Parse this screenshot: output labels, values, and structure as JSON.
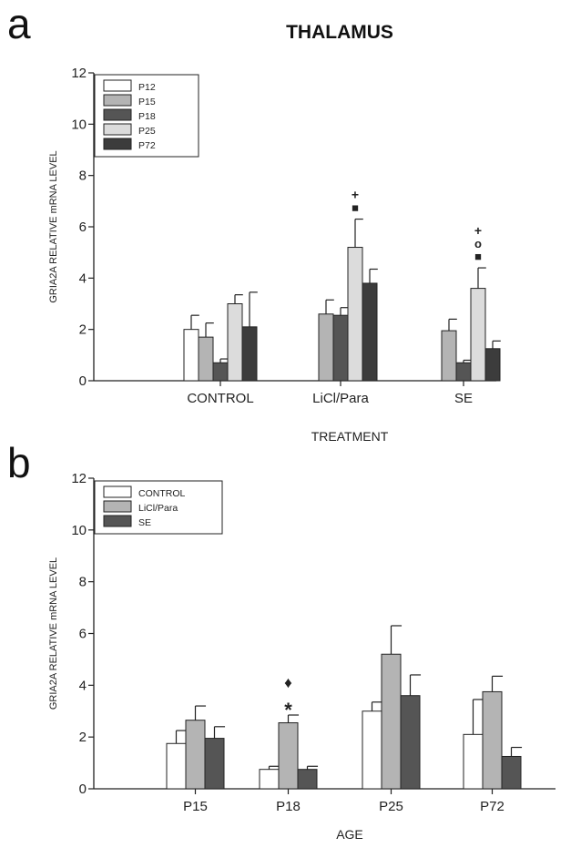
{
  "panel_a": {
    "letter": "a",
    "title": "THALAMUS"
  },
  "panel_b": {
    "letter": "b"
  },
  "colors": {
    "P12": "#ffffff",
    "P15": "#b4b4b4",
    "P18": "#555555",
    "P25": "#dcdcdc",
    "P72": "#3c3c3c",
    "CONTROL": "#ffffff",
    "LiCl/Para": "#b4b4b4",
    "SE": "#555555"
  },
  "chart_data": [
    {
      "type": "bar",
      "title": "THALAMUS",
      "xlabel": "TREATMENT",
      "ylabel": "GRIA2A RELATIVE mRNA LEVEL",
      "ylim": [
        0,
        12
      ],
      "yticks": [
        0,
        2,
        4,
        6,
        8,
        10,
        12
      ],
      "categories": [
        "CONTROL",
        "LiCl/Para",
        "SE"
      ],
      "legend": "top-left",
      "series": [
        {
          "name": "P12",
          "values": [
            2.0,
            null,
            null
          ],
          "errors": [
            0.55,
            null,
            null
          ]
        },
        {
          "name": "P15",
          "values": [
            1.7,
            2.6,
            1.95
          ],
          "errors": [
            0.55,
            0.55,
            0.45
          ]
        },
        {
          "name": "P18",
          "values": [
            0.7,
            2.55,
            0.7
          ],
          "errors": [
            0.15,
            0.3,
            0.1
          ]
        },
        {
          "name": "P25",
          "values": [
            3.0,
            5.2,
            3.6
          ],
          "errors": [
            0.35,
            1.1,
            0.8
          ]
        },
        {
          "name": "P72",
          "values": [
            2.1,
            3.8,
            1.25
          ],
          "errors": [
            1.35,
            0.55,
            0.3
          ]
        }
      ],
      "annotations": [
        {
          "category": "LiCl/Para",
          "series": "P25",
          "symbols": [
            "■",
            "+"
          ]
        },
        {
          "category": "SE",
          "series": "P25",
          "symbols": [
            "■",
            "o",
            "+"
          ]
        }
      ]
    },
    {
      "type": "bar",
      "xlabel": "AGE",
      "ylabel": "GRIA2A RELATIVE mRNA LEVEL",
      "ylim": [
        0,
        12
      ],
      "yticks": [
        0,
        2,
        4,
        6,
        8,
        10,
        12
      ],
      "categories": [
        "P15",
        "P18",
        "P25",
        "P72"
      ],
      "legend": "top-left",
      "series": [
        {
          "name": "CONTROL",
          "values": [
            1.75,
            0.75,
            3.0,
            2.1
          ],
          "errors": [
            0.5,
            0.12,
            0.35,
            1.35
          ]
        },
        {
          "name": "LiCl/Para",
          "values": [
            2.65,
            2.55,
            5.2,
            3.75
          ],
          "errors": [
            0.55,
            0.3,
            1.1,
            0.6
          ]
        },
        {
          "name": "SE",
          "values": [
            1.95,
            0.75,
            3.6,
            1.25
          ],
          "errors": [
            0.45,
            0.12,
            0.8,
            0.35
          ]
        }
      ],
      "annotations": [
        {
          "category": "P18",
          "series": "LiCl/Para",
          "symbols": [
            "*",
            "♦"
          ]
        }
      ]
    }
  ]
}
